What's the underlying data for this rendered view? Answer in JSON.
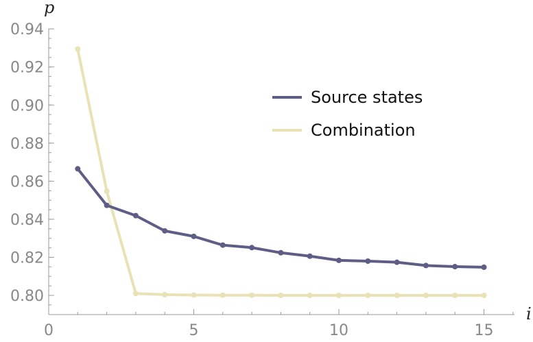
{
  "chart_data": {
    "type": "line",
    "xlabel": "i",
    "ylabel": "p",
    "xlim": [
      0,
      16
    ],
    "ylim": [
      0.79,
      0.94
    ],
    "x_ticks": [
      0,
      5,
      10,
      15
    ],
    "x_tick_labels": [
      "0",
      "5",
      "10",
      "15"
    ],
    "y_ticks": [
      0.8,
      0.82,
      0.84,
      0.86,
      0.88,
      0.9,
      0.92,
      0.94
    ],
    "y_tick_labels": [
      "0.80",
      "0.82",
      "0.84",
      "0.86",
      "0.88",
      "0.90",
      "0.92",
      "0.94"
    ],
    "grid": false,
    "legend_position": "right",
    "x": [
      1,
      2,
      3,
      4,
      5,
      6,
      7,
      8,
      9,
      10,
      11,
      12,
      13,
      14,
      15
    ],
    "series": [
      {
        "name": "Source states",
        "color": "#5e5d86",
        "values": [
          0.8665,
          0.8473,
          0.8419,
          0.8339,
          0.831,
          0.8264,
          0.8251,
          0.8224,
          0.8206,
          0.8184,
          0.818,
          0.8174,
          0.8157,
          0.8151,
          0.8148
        ]
      },
      {
        "name": "Combination",
        "color": "#e8e2b6",
        "values": [
          0.9294,
          0.8548,
          0.801,
          0.8004,
          0.8002,
          0.8001,
          0.8001,
          0.8,
          0.8,
          0.8,
          0.8,
          0.8,
          0.8,
          0.8,
          0.8
        ]
      }
    ]
  }
}
